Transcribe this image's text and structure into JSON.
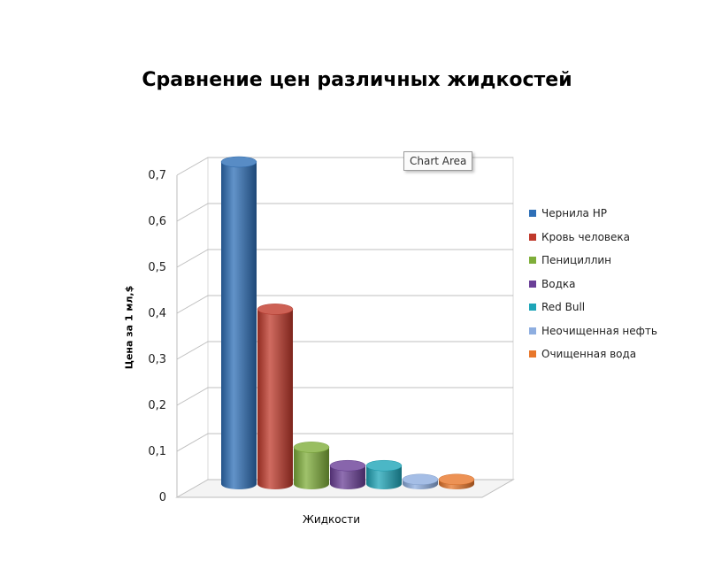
{
  "chart_data": {
    "type": "bar",
    "title": "Сравнение цен различных жидкостей",
    "xlabel": "Жидкости",
    "ylabel": "Цена за 1 мл,$",
    "ylim": [
      0,
      0.7
    ],
    "yticks": [
      "0",
      "0,1",
      "0,2",
      "0,3",
      "0,4",
      "0,5",
      "0,6",
      "0,7"
    ],
    "grid": true,
    "legend_position": "right",
    "series": [
      {
        "name": "Чернила HP",
        "value": 0.7,
        "color": "#2e6fb7"
      },
      {
        "name": "Кровь человека",
        "value": 0.38,
        "color": "#c0392b"
      },
      {
        "name": "Пенициллин",
        "value": 0.08,
        "color": "#7fae3a"
      },
      {
        "name": "Водка",
        "value": 0.04,
        "color": "#6a3f97"
      },
      {
        "name": "Red Bull",
        "value": 0.04,
        "color": "#1ea5b8"
      },
      {
        "name": "Неочищенная нефть",
        "value": 0.01,
        "color": "#8eaee0"
      },
      {
        "name": "Очищенная вода",
        "value": 0.01,
        "color": "#e8772b"
      }
    ]
  },
  "tooltip": "Chart Area"
}
